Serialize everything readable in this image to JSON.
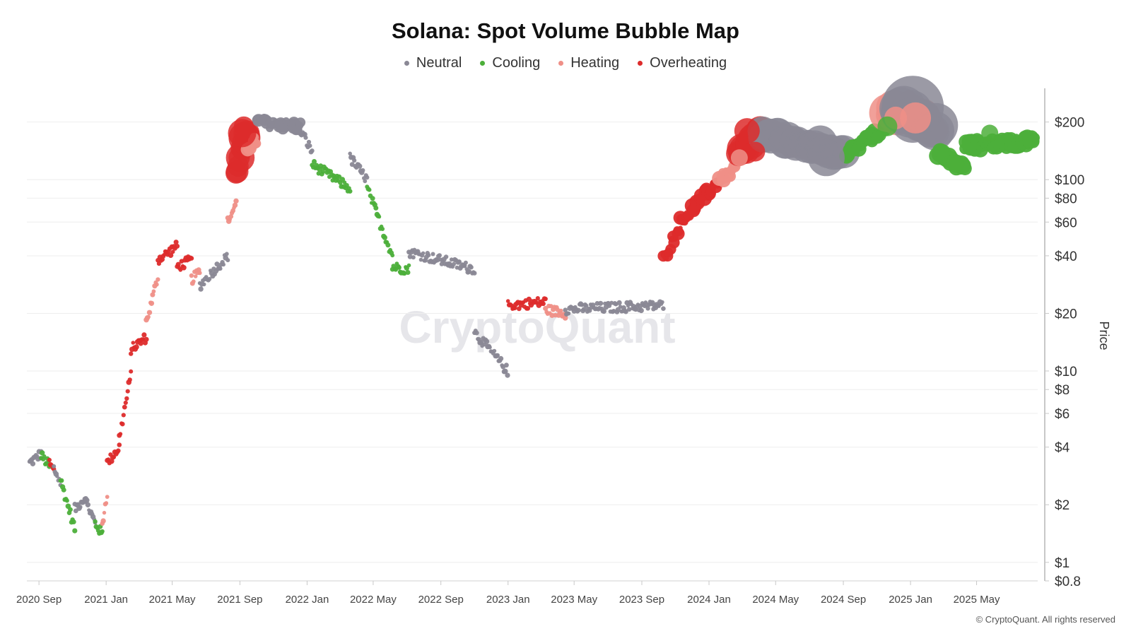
{
  "chart_data": {
    "type": "scatter",
    "title": "Solana: Spot Volume Bubble Map",
    "watermark": "CryptoQuant",
    "copyright": "© CryptoQuant. All rights reserved",
    "ylabel": "Price",
    "yscale": "log",
    "ylim": [
      0.8,
      300
    ],
    "xlim": [
      "2020-08-10",
      "2025-08-20"
    ],
    "x_ticks": [
      {
        "label": "2020 Sep",
        "date": "2020-09-01"
      },
      {
        "label": "2021 Jan",
        "date": "2021-01-01"
      },
      {
        "label": "2021 May",
        "date": "2021-05-01"
      },
      {
        "label": "2021 Sep",
        "date": "2021-09-01"
      },
      {
        "label": "2022 Jan",
        "date": "2022-01-01"
      },
      {
        "label": "2022 May",
        "date": "2022-05-01"
      },
      {
        "label": "2022 Sep",
        "date": "2022-09-01"
      },
      {
        "label": "2023 Jan",
        "date": "2023-01-01"
      },
      {
        "label": "2023 May",
        "date": "2023-05-01"
      },
      {
        "label": "2023 Sep",
        "date": "2023-09-01"
      },
      {
        "label": "2024 Jan",
        "date": "2024-01-01"
      },
      {
        "label": "2024 May",
        "date": "2024-05-01"
      },
      {
        "label": "2024 Sep",
        "date": "2024-09-01"
      },
      {
        "label": "2025 Jan",
        "date": "2025-01-01"
      },
      {
        "label": "2025 May",
        "date": "2025-05-01"
      }
    ],
    "y_ticks": [
      {
        "label": "$200",
        "value": 200
      },
      {
        "label": "$100",
        "value": 100
      },
      {
        "label": "$80",
        "value": 80
      },
      {
        "label": "$60",
        "value": 60
      },
      {
        "label": "$40",
        "value": 40
      },
      {
        "label": "$20",
        "value": 20
      },
      {
        "label": "$10",
        "value": 10
      },
      {
        "label": "$8",
        "value": 8
      },
      {
        "label": "$6",
        "value": 6
      },
      {
        "label": "$4",
        "value": 4
      },
      {
        "label": "$2",
        "value": 2
      },
      {
        "label": "$1",
        "value": 1
      },
      {
        "label": "$0.8",
        "value": 0.8
      }
    ],
    "categories": [
      {
        "name": "Neutral",
        "color": "#8a8895"
      },
      {
        "name": "Cooling",
        "color": "#4caf3a"
      },
      {
        "name": "Heating",
        "color": "#ef8f87"
      },
      {
        "name": "Overheating",
        "color": "#dd2b2b"
      }
    ],
    "series": [
      {
        "start": "2020-08-15",
        "end": "2020-09-05",
        "price_start": 3.3,
        "price_end": 3.7,
        "category": "Neutral",
        "size": 1
      },
      {
        "start": "2020-09-05",
        "end": "2020-09-20",
        "price_start": 3.6,
        "price_end": 3.2,
        "category": "Cooling",
        "size": 1
      },
      {
        "start": "2020-09-20",
        "end": "2020-09-28",
        "price_start": 3.3,
        "price_end": 3.0,
        "category": "Overheating",
        "size": 1
      },
      {
        "start": "2020-09-28",
        "end": "2020-10-10",
        "price_start": 3.1,
        "price_end": 2.6,
        "category": "Neutral",
        "size": 1
      },
      {
        "start": "2020-10-10",
        "end": "2020-11-05",
        "price_start": 2.7,
        "price_end": 1.5,
        "category": "Cooling",
        "size": 1
      },
      {
        "start": "2020-11-05",
        "end": "2020-11-25",
        "price_start": 1.9,
        "price_end": 2.2,
        "category": "Neutral",
        "size": 1
      },
      {
        "start": "2020-11-25",
        "end": "2020-12-12",
        "price_start": 2.1,
        "price_end": 1.6,
        "category": "Neutral",
        "size": 1
      },
      {
        "start": "2020-12-12",
        "end": "2020-12-25",
        "price_start": 1.6,
        "price_end": 1.4,
        "category": "Cooling",
        "size": 1
      },
      {
        "start": "2020-12-25",
        "end": "2021-01-03",
        "price_start": 1.6,
        "price_end": 2.3,
        "category": "Heating",
        "size": 1
      },
      {
        "start": "2021-01-03",
        "end": "2021-01-25",
        "price_start": 3.3,
        "price_end": 4.0,
        "category": "Overheating",
        "size": 1
      },
      {
        "start": "2021-01-25",
        "end": "2021-02-15",
        "price_start": 4.5,
        "price_end": 9.5,
        "category": "Overheating",
        "size": 1
      },
      {
        "start": "2021-02-15",
        "end": "2021-03-15",
        "price_start": 13,
        "price_end": 15,
        "category": "Overheating",
        "size": 1
      },
      {
        "start": "2021-03-15",
        "end": "2021-04-05",
        "price_start": 18,
        "price_end": 31,
        "category": "Heating",
        "size": 1
      },
      {
        "start": "2021-04-05",
        "end": "2021-05-10",
        "price_start": 38,
        "price_end": 45,
        "category": "Overheating",
        "size": 1
      },
      {
        "start": "2021-05-10",
        "end": "2021-06-05",
        "price_start": 35,
        "price_end": 38,
        "category": "Overheating",
        "size": 1
      },
      {
        "start": "2021-06-05",
        "end": "2021-06-20",
        "price_start": 30,
        "price_end": 33,
        "category": "Heating",
        "size": 1
      },
      {
        "start": "2021-06-20",
        "end": "2021-08-10",
        "price_start": 28,
        "price_end": 40,
        "category": "Neutral",
        "size": 1
      },
      {
        "start": "2021-08-10",
        "end": "2021-08-25",
        "price_start": 60,
        "price_end": 75,
        "category": "Heating",
        "size": 1
      },
      {
        "start": "2021-08-25",
        "end": "2021-09-15",
        "price_start": 110,
        "price_end": 180,
        "category": "Overheating",
        "size": 4
      },
      {
        "start": "2021-09-15",
        "end": "2021-10-01",
        "price_start": 150,
        "price_end": 160,
        "category": "Heating",
        "size": 2
      },
      {
        "start": "2021-10-01",
        "end": "2021-12-20",
        "price_start": 200,
        "price_end": 190,
        "category": "Neutral",
        "size": 1.5
      },
      {
        "start": "2021-12-20",
        "end": "2022-01-10",
        "price_start": 180,
        "price_end": 140,
        "category": "Neutral",
        "size": 1
      },
      {
        "start": "2022-01-10",
        "end": "2022-03-20",
        "price_start": 120,
        "price_end": 90,
        "category": "Cooling",
        "size": 1
      },
      {
        "start": "2022-03-20",
        "end": "2022-04-20",
        "price_start": 130,
        "price_end": 100,
        "category": "Neutral",
        "size": 1
      },
      {
        "start": "2022-04-20",
        "end": "2022-06-05",
        "price_start": 90,
        "price_end": 40,
        "category": "Cooling",
        "size": 1
      },
      {
        "start": "2022-06-05",
        "end": "2022-07-05",
        "price_start": 35,
        "price_end": 34,
        "category": "Cooling",
        "size": 1
      },
      {
        "start": "2022-07-05",
        "end": "2022-11-01",
        "price_start": 42,
        "price_end": 34,
        "category": "Neutral",
        "size": 1
      },
      {
        "start": "2022-11-01",
        "end": "2022-12-31",
        "price_start": 16,
        "price_end": 10,
        "category": "Neutral",
        "size": 1
      },
      {
        "start": "2023-01-01",
        "end": "2023-03-10",
        "price_start": 22,
        "price_end": 23,
        "category": "Overheating",
        "size": 1
      },
      {
        "start": "2023-03-10",
        "end": "2023-04-15",
        "price_start": 21,
        "price_end": 20,
        "category": "Heating",
        "size": 1
      },
      {
        "start": "2023-04-15",
        "end": "2023-10-10",
        "price_start": 21,
        "price_end": 22,
        "category": "Neutral",
        "size": 1
      },
      {
        "start": "2023-10-10",
        "end": "2023-11-10",
        "price_start": 38,
        "price_end": 58,
        "category": "Overheating",
        "size": 1.5
      },
      {
        "start": "2023-11-10",
        "end": "2024-01-20",
        "price_start": 60,
        "price_end": 100,
        "category": "Overheating",
        "size": 2
      },
      {
        "start": "2024-01-20",
        "end": "2024-02-20",
        "price_start": 100,
        "price_end": 115,
        "category": "Heating",
        "size": 2
      },
      {
        "start": "2024-02-20",
        "end": "2024-04-05",
        "price_start": 130,
        "price_end": 180,
        "category": "Overheating",
        "size": 4
      },
      {
        "start": "2024-04-05",
        "end": "2024-09-05",
        "price_start": 170,
        "price_end": 140,
        "category": "Neutral",
        "size": 5
      },
      {
        "start": "2024-09-05",
        "end": "2024-11-20",
        "price_start": 135,
        "price_end": 190,
        "category": "Cooling",
        "size": 2
      },
      {
        "start": "2024-11-20",
        "end": "2025-01-25",
        "price_start": 230,
        "price_end": 210,
        "category": "Heating",
        "size": 6
      },
      {
        "start": "2024-12-10",
        "end": "2025-02-20",
        "price_start": 240,
        "price_end": 180,
        "category": "Neutral",
        "size": 8
      },
      {
        "start": "2025-02-20",
        "end": "2025-04-10",
        "price_start": 135,
        "price_end": 115,
        "category": "Cooling",
        "size": 3
      },
      {
        "start": "2025-04-10",
        "end": "2025-08-15",
        "price_start": 150,
        "price_end": 160,
        "category": "Cooling",
        "size": 2.5
      }
    ]
  }
}
